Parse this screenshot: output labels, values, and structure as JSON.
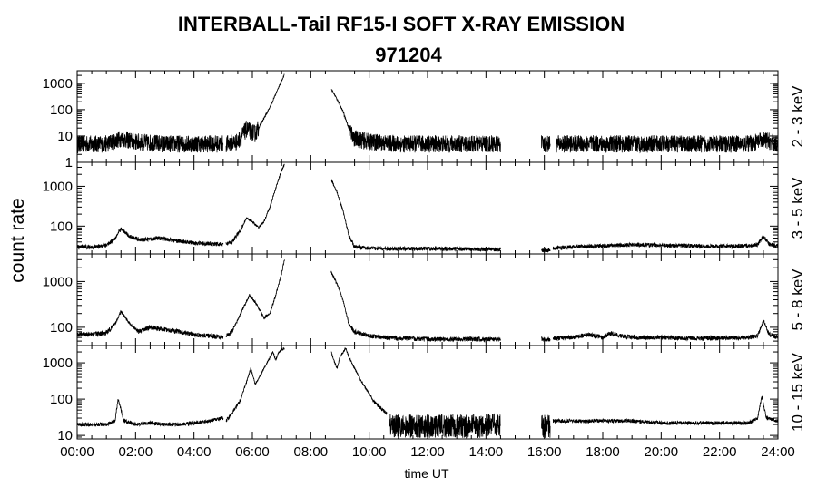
{
  "chart_data": {
    "type": "line",
    "title": "INTERBALL-Tail RF15-I SOFT X-RAY EMISSION",
    "subtitle": "971204",
    "xlabel": "time UT",
    "ylabel": "count rate",
    "x_ticks": [
      "00:00",
      "02:00",
      "04:00",
      "06:00",
      "08:00",
      "10:00",
      "12:00",
      "14:00",
      "16:00",
      "18:00",
      "20:00",
      "22:00",
      "24:00"
    ],
    "xlim": [
      0,
      24
    ],
    "y_scale": "log",
    "panels": [
      {
        "name": "2 - 3 keV",
        "ylim": [
          1,
          3000
        ],
        "y_ticks": [
          {
            "label": "1000",
            "value": 1000
          },
          {
            "label": "100",
            "value": 100
          },
          {
            "label": "10",
            "value": 10
          },
          {
            "label": "1",
            "value": 1
          }
        ],
        "series": [
          {
            "x": [
              0,
              0.5,
              1.0,
              1.5,
              2.0,
              3.0,
              4.0,
              5.0
            ],
            "y": [
              5,
              5,
              5,
              8,
              6,
              5,
              5,
              5
            ]
          },
          {
            "x": [
              5.1,
              5.5,
              5.8,
              6.1,
              6.3,
              6.6,
              6.9,
              7.1
            ],
            "y": [
              5,
              6,
              18,
              12,
              30,
              120,
              700,
              2200
            ]
          },
          {
            "x": [
              8.7,
              8.9,
              9.1,
              9.3,
              9.5,
              10.0,
              11.0,
              12.0,
              13.0,
              14.0,
              14.5
            ],
            "y": [
              600,
              250,
              90,
              20,
              8,
              6,
              5,
              5,
              5,
              5,
              5
            ]
          },
          {
            "x": [
              15.9,
              16.0,
              16.2
            ],
            "y": [
              5,
              5,
              5
            ]
          },
          {
            "x": [
              16.4,
              17.0,
              18.0,
              19.0,
              20.0,
              21.0,
              22.0,
              23.0,
              23.6,
              23.9,
              24.0
            ],
            "y": [
              5,
              5,
              5,
              5,
              5,
              5,
              5,
              5,
              7,
              5,
              5
            ]
          }
        ]
      },
      {
        "name": "3 - 5 keV",
        "ylim": [
          20,
          4000
        ],
        "y_ticks": [
          {
            "label": "1000",
            "value": 1000
          },
          {
            "label": "100",
            "value": 100
          }
        ],
        "series": [
          {
            "x": [
              0,
              0.5,
              1.0,
              1.3,
              1.5,
              1.8,
              2.2,
              2.8,
              3.5,
              4.0,
              4.5,
              5.0
            ],
            "y": [
              30,
              30,
              33,
              50,
              85,
              55,
              45,
              50,
              42,
              38,
              36,
              35
            ]
          },
          {
            "x": [
              5.1,
              5.3,
              5.6,
              5.8,
              6.0,
              6.2,
              6.4,
              6.6,
              6.8,
              7.0,
              7.1
            ],
            "y": [
              36,
              40,
              80,
              160,
              130,
              90,
              130,
              300,
              900,
              2500,
              3500
            ]
          },
          {
            "x": [
              8.7,
              8.9,
              9.1,
              9.3,
              9.5,
              10.0,
              10.5,
              11.0,
              12.0,
              13.0,
              14.0,
              14.5
            ],
            "y": [
              1500,
              700,
              250,
              60,
              30,
              28,
              27,
              27,
              27,
              27,
              26,
              26
            ]
          },
          {
            "x": [
              15.9,
              16.0,
              16.2
            ],
            "y": [
              25,
              25,
              25
            ]
          },
          {
            "x": [
              16.3,
              17.0,
              18.0,
              19.0,
              20.0,
              21.0,
              22.0,
              23.0,
              23.3,
              23.5,
              23.7,
              24.0
            ],
            "y": [
              28,
              30,
              32,
              34,
              33,
              32,
              31,
              32,
              35,
              55,
              35,
              32
            ]
          }
        ]
      },
      {
        "name": "5 - 8 keV",
        "ylim": [
          40,
          4000
        ],
        "y_ticks": [
          {
            "label": "1000",
            "value": 1000
          },
          {
            "label": "100",
            "value": 100
          }
        ],
        "series": [
          {
            "x": [
              0,
              0.5,
              1.0,
              1.3,
              1.5,
              1.8,
              2.1,
              2.5,
              3.0,
              3.5,
              4.0,
              4.5,
              5.0
            ],
            "y": [
              70,
              70,
              75,
              120,
              220,
              120,
              80,
              100,
              90,
              80,
              70,
              65,
              62
            ]
          },
          {
            "x": [
              5.1,
              5.3,
              5.6,
              5.9,
              6.1,
              6.4,
              6.6,
              6.8,
              7.0,
              7.1
            ],
            "y": [
              65,
              80,
              200,
              500,
              350,
              160,
              200,
              500,
              1500,
              3000
            ]
          },
          {
            "x": [
              8.7,
              8.9,
              9.1,
              9.3,
              9.5,
              10.0,
              10.5,
              11.0,
              12.0,
              13.0,
              14.0,
              14.5
            ],
            "y": [
              1600,
              900,
              400,
              120,
              80,
              65,
              60,
              58,
              55,
              55,
              55,
              55
            ]
          },
          {
            "x": [
              15.9,
              16.0,
              16.2
            ],
            "y": [
              55,
              55,
              55
            ]
          },
          {
            "x": [
              16.3,
              17.0,
              17.5,
              18.0,
              18.3,
              18.6,
              19.0,
              20.0,
              21.0,
              22.0,
              23.0,
              23.3,
              23.5,
              23.7,
              24.0
            ],
            "y": [
              58,
              60,
              70,
              60,
              75,
              65,
              60,
              60,
              58,
              58,
              60,
              65,
              140,
              70,
              60
            ]
          }
        ]
      },
      {
        "name": "10 - 15 keV",
        "ylim": [
          8,
          3000
        ],
        "y_ticks": [
          {
            "label": "1000",
            "value": 1000
          },
          {
            "label": "100",
            "value": 100
          },
          {
            "label": "10",
            "value": 10
          }
        ],
        "series": [
          {
            "x": [
              0,
              0.5,
              1.0,
              1.3,
              1.4,
              1.6,
              2.0,
              2.5,
              3.0,
              3.5,
              4.0,
              4.5,
              5.0
            ],
            "y": [
              20,
              20,
              20,
              25,
              100,
              25,
              20,
              22,
              20,
              20,
              22,
              25,
              30
            ]
          },
          {
            "x": [
              5.1,
              5.3,
              5.6,
              5.8,
              5.95,
              6.1,
              6.3,
              6.5,
              6.7,
              6.8,
              6.9,
              7.1
            ],
            "y": [
              25,
              40,
              100,
              300,
              700,
              250,
              500,
              1000,
              2000,
              1200,
              2000,
              2500
            ]
          },
          {
            "x": [
              8.7,
              8.8,
              8.9,
              9.0,
              9.2,
              9.3,
              9.5,
              9.8,
              10.2,
              10.6
            ],
            "y": [
              2000,
              1100,
              700,
              1500,
              2500,
              1500,
              700,
              250,
              80,
              40
            ]
          },
          {
            "x": [
              10.7,
              11.0,
              12.0,
              13.0,
              14.0,
              14.5
            ],
            "y": [
              20,
              18,
              18,
              18,
              18,
              20
            ]
          },
          {
            "x": [
              15.9,
              16.0,
              16.2
            ],
            "y": [
              18,
              18,
              18
            ]
          },
          {
            "x": [
              16.3,
              17.0,
              18.0,
              19.0,
              20.0,
              21.0,
              22.0,
              23.0,
              23.3,
              23.45,
              23.6,
              24.0
            ],
            "y": [
              25,
              25,
              25,
              25,
              22,
              22,
              22,
              22,
              30,
              120,
              30,
              25
            ]
          }
        ]
      }
    ]
  }
}
